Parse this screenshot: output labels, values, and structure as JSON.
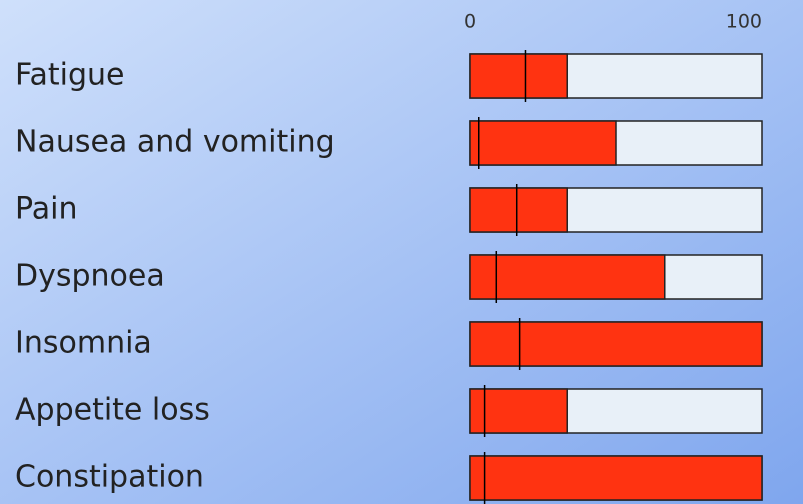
{
  "chart_data": {
    "type": "bar",
    "orientation": "horizontal",
    "categories": [
      "Fatigue",
      "Nausea and vomiting",
      "Pain",
      "Dyspnoea",
      "Insomnia",
      "Appetite loss",
      "Constipation"
    ],
    "values": [
      33.3,
      50,
      33.3,
      66.7,
      100,
      33.3,
      100
    ],
    "reference_values": [
      19,
      3,
      16,
      9,
      17,
      5,
      5
    ],
    "color": "#ff3311",
    "track_color": "#e8f0f8",
    "reference_color": "#000000",
    "xlim": [
      0,
      100
    ],
    "xticks": [
      0,
      100
    ]
  }
}
